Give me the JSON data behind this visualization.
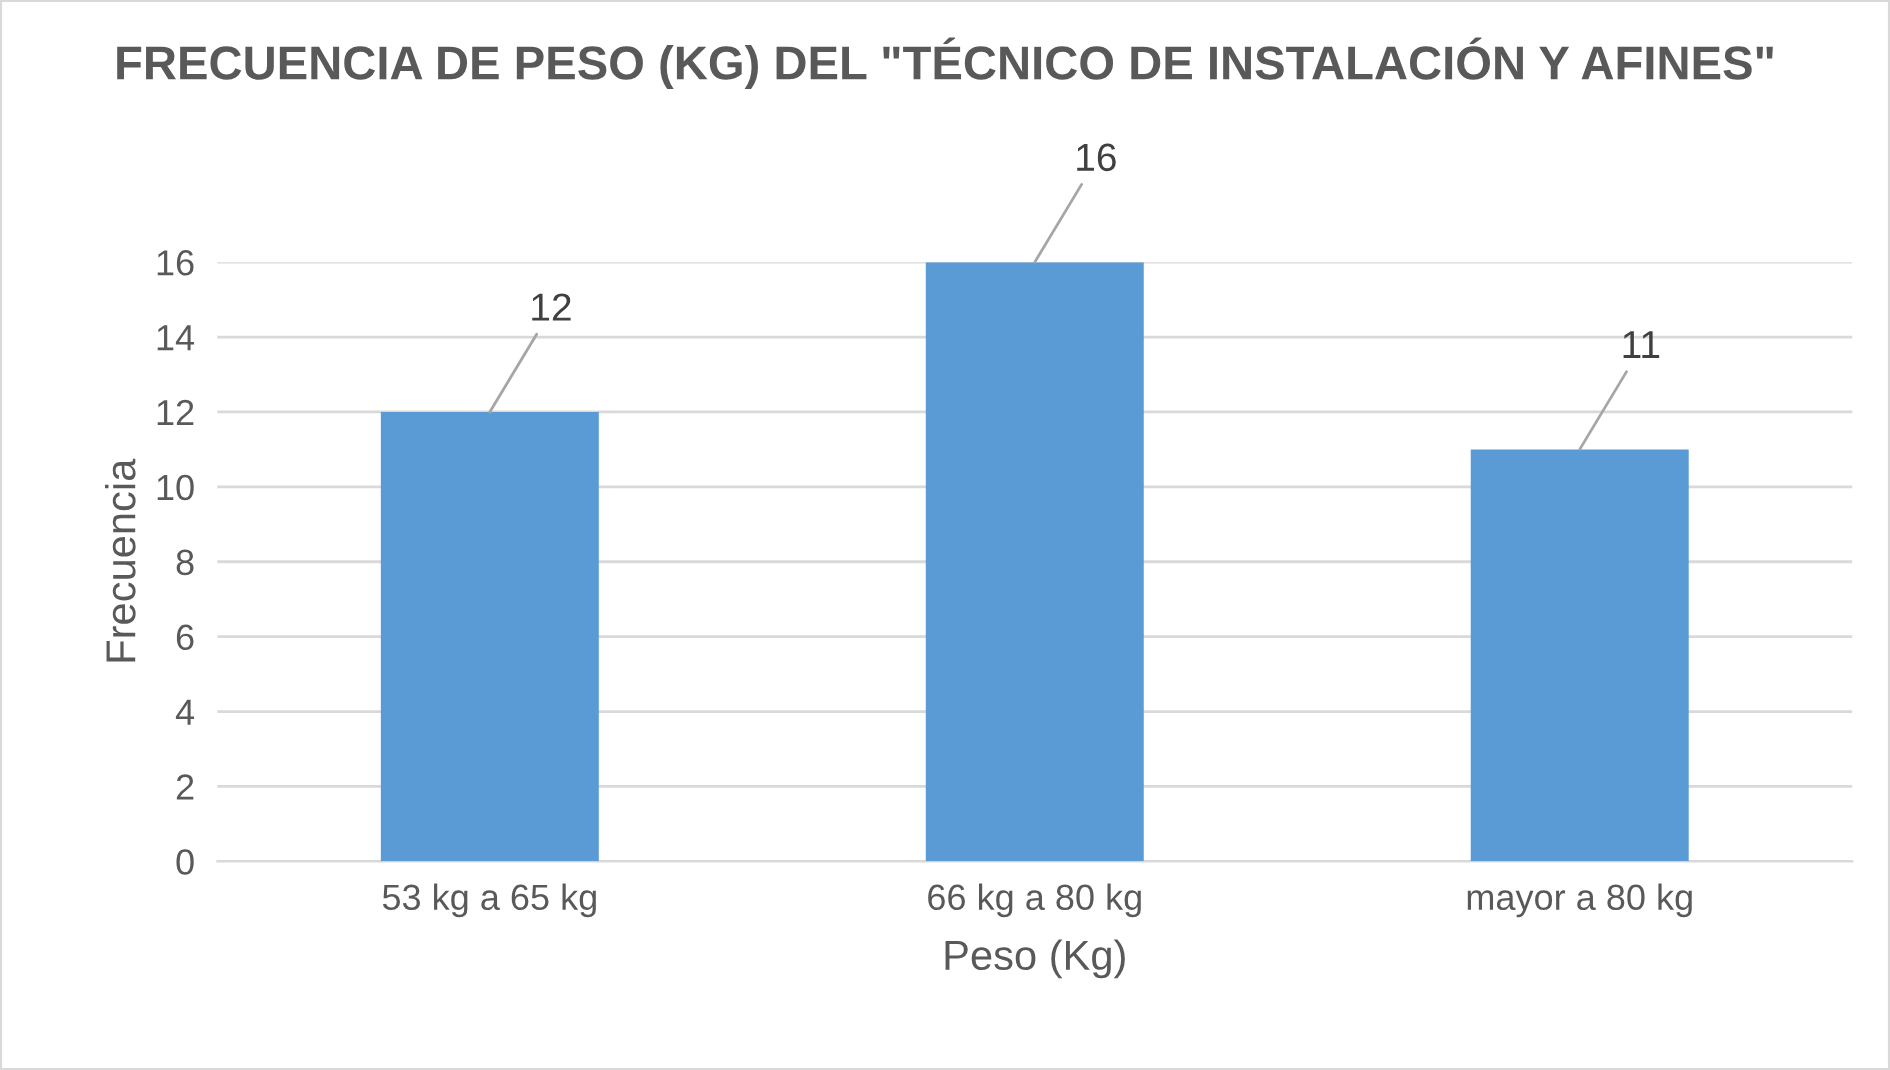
{
  "chart_data": {
    "type": "bar",
    "title": "FRECUENCIA DE PESO (KG) DEL \"TÉCNICO DE INSTALACIÓN Y AFINES\"",
    "xlabel": "Peso (Kg)",
    "ylabel": "Frecuencia",
    "categories": [
      "53 kg a 65 kg",
      "66 kg a 80 kg",
      "mayor a 80 kg"
    ],
    "values": [
      12,
      16,
      11
    ],
    "color": "#5b9bd5",
    "ylim": [
      0,
      16
    ],
    "yticks": [
      0,
      2,
      4,
      6,
      8,
      10,
      12,
      14,
      16
    ],
    "grid": "y",
    "data_labels": true
  }
}
